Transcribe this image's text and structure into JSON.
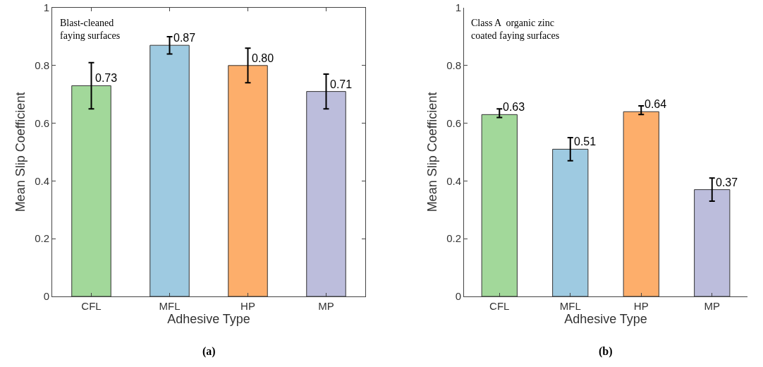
{
  "chart_data": [
    {
      "type": "bar",
      "categories": [
        "CFL",
        "MFL",
        "HP",
        "MP"
      ],
      "values": [
        0.73,
        0.87,
        0.8,
        0.71
      ],
      "colors": [
        "#a2d89a",
        "#9ecae1",
        "#fdae6b",
        "#bcbddc"
      ],
      "errors": [
        [
          0.65,
          0.81
        ],
        [
          0.84,
          0.9
        ],
        [
          0.74,
          0.86
        ],
        [
          0.65,
          0.77
        ]
      ],
      "value_labels": [
        "0.73",
        "0.87",
        "0.80",
        "0.71"
      ],
      "xlabel": "Adhesive Type",
      "ylabel": "Mean Slip Coefficient",
      "ylim": [
        0,
        1
      ],
      "yticks": [
        0,
        0.2,
        0.4,
        0.6,
        0.8,
        1
      ],
      "grid": false,
      "legend": false,
      "annotations": [
        "Blast-cleaned\nfaying surfaces",
        "(a)"
      ]
    },
    {
      "type": "bar",
      "categories": [
        "CFL",
        "MFL",
        "HP",
        "MP"
      ],
      "values": [
        0.63,
        0.51,
        0.64,
        0.37
      ],
      "colors": [
        "#a2d89a",
        "#9ecae1",
        "#fdae6b",
        "#bcbddc"
      ],
      "errors": [
        [
          0.62,
          0.65
        ],
        [
          0.47,
          0.55
        ],
        [
          0.63,
          0.66
        ],
        [
          0.33,
          0.41
        ]
      ],
      "value_labels": [
        "0.63",
        "0.51",
        "0.64",
        "0.37"
      ],
      "xlabel": "Adhesive Type",
      "ylabel": "Mean Slip Coefficient",
      "ylim": [
        0,
        1
      ],
      "yticks": [
        0,
        0.2,
        0.4,
        0.6,
        0.8,
        1
      ],
      "grid": false,
      "legend": false,
      "annotations": [
        "Class A  organic zinc\ncoated faying surfaces",
        "(b)"
      ]
    }
  ]
}
